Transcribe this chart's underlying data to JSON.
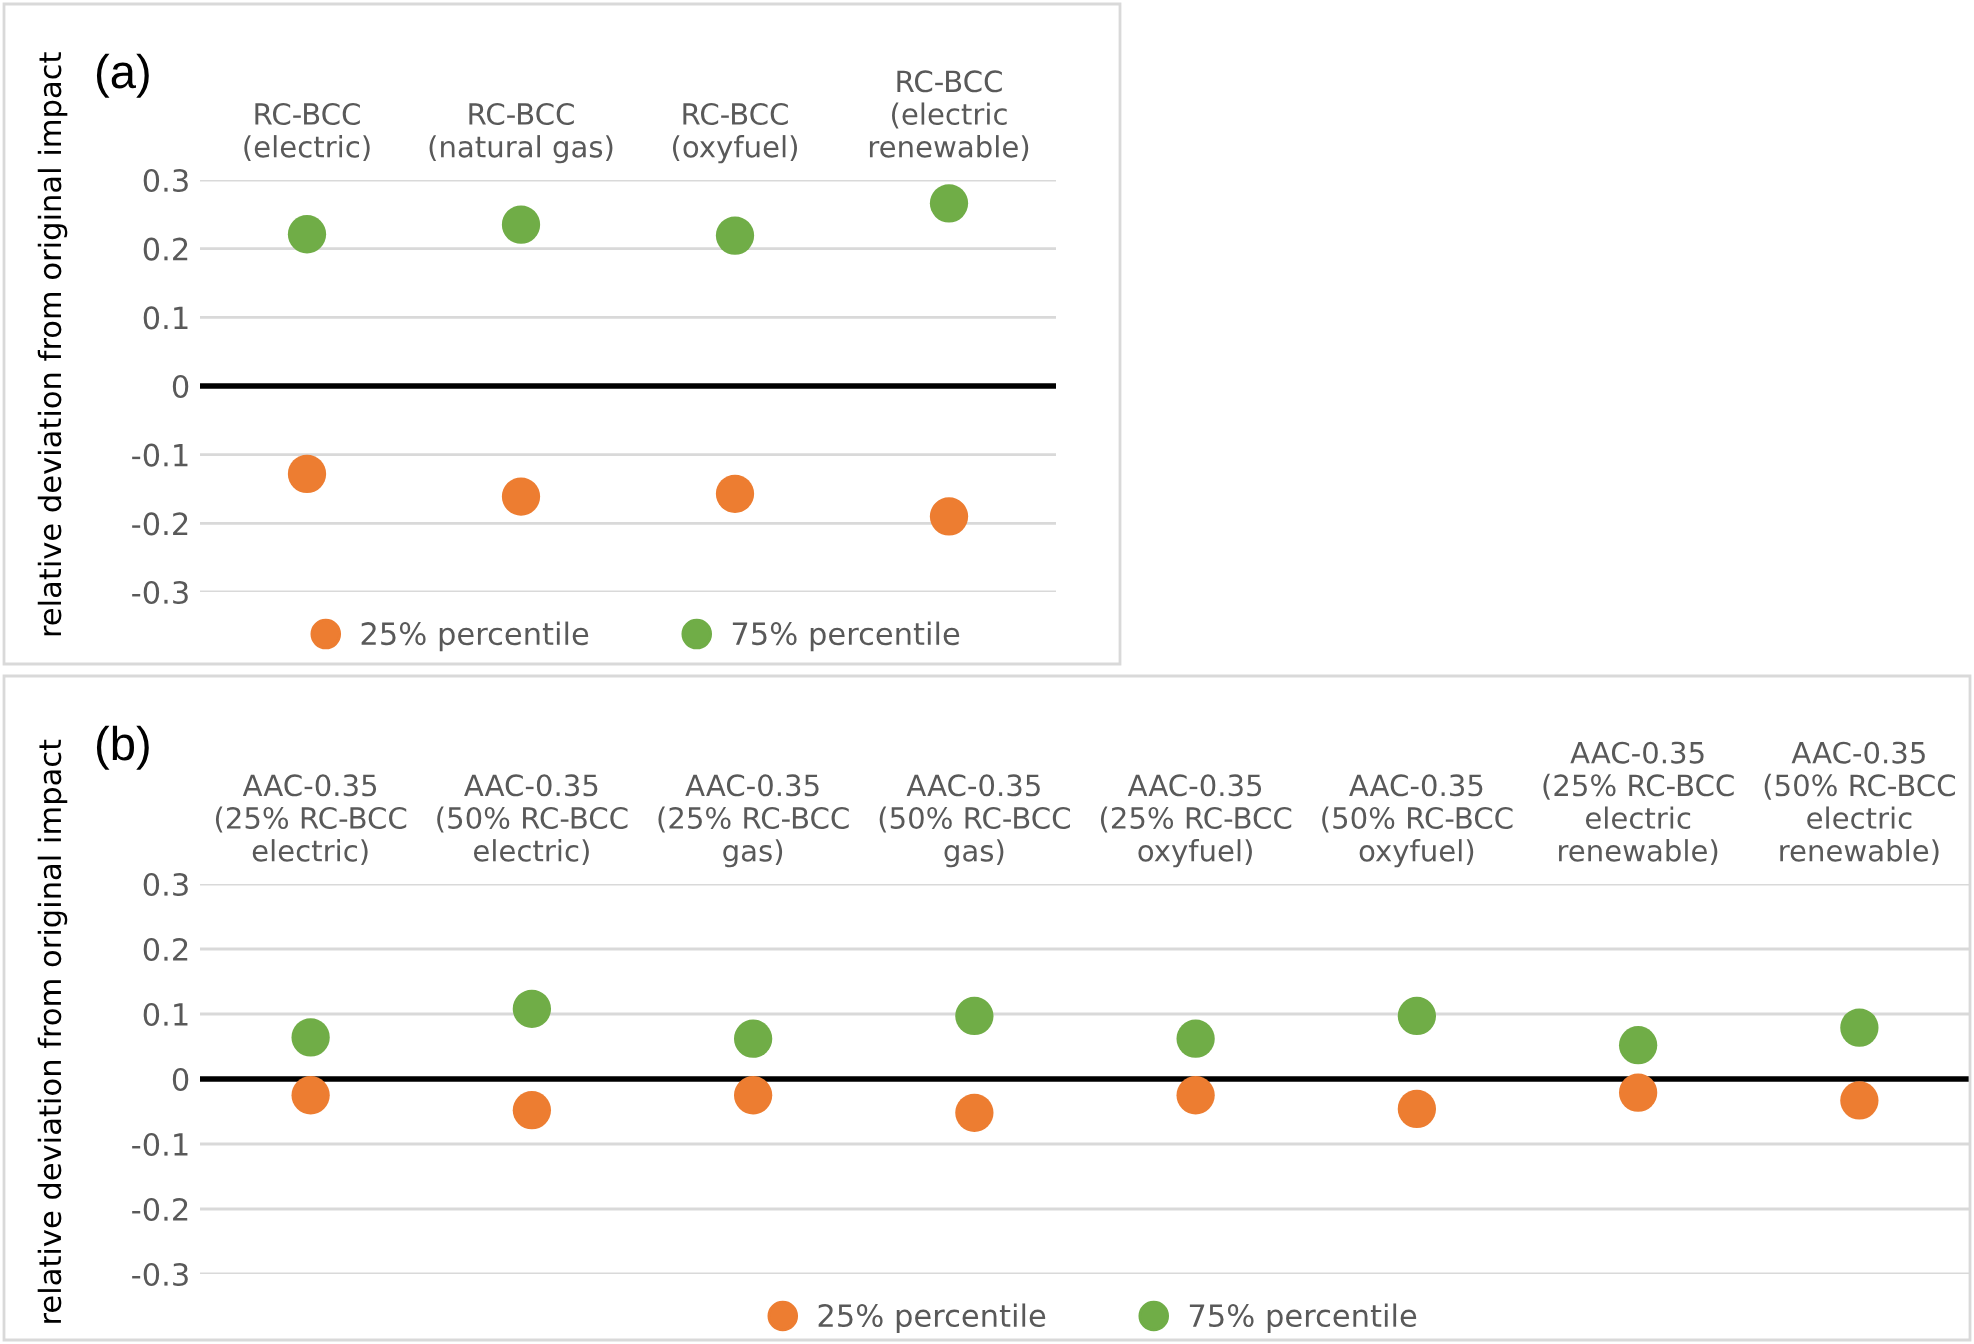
{
  "chart_data": [
    {
      "type": "scatter",
      "annotations": [
        "(a)"
      ],
      "ylabel": "relative deviation from original impact",
      "categories": [
        "RC-BCC\n(electric)",
        "RC-BCC\n(natural gas)",
        "RC-BCC\n(oxyfuel)",
        "RC-BCC\n(electric\nrenewable)"
      ],
      "series": [
        {
          "name": "25% percentile",
          "color": "#ed7d31",
          "values": [
            -0.128,
            -0.161,
            -0.157,
            -0.19
          ]
        },
        {
          "name": "75% percentile",
          "color": "#70ad47",
          "values": [
            0.221,
            0.235,
            0.219,
            0.266
          ]
        }
      ],
      "ylim": [
        -0.3,
        0.3
      ],
      "yticks": [
        -0.3,
        -0.2,
        -0.1,
        0,
        0.1,
        0.2,
        0.3
      ],
      "ref_lines": [
        {
          "axis": "y",
          "value": 0,
          "color": "#000000"
        }
      ],
      "grid": "y",
      "legend": "bottom",
      "marker": "circle"
    },
    {
      "type": "scatter",
      "annotations": [
        "(b)"
      ],
      "ylabel": "relative deviation from original impact",
      "categories": [
        "AAC-0.35\n(25% RC-BCC\nelectric)",
        "AAC-0.35\n(50% RC-BCC\nelectric)",
        "AAC-0.35\n(25% RC-BCC\ngas)",
        "AAC-0.35\n(50% RC-BCC\ngas)",
        "AAC-0.35\n(25% RC-BCC\noxyfuel)",
        "AAC-0.35\n(50% RC-BCC\noxyfuel)",
        "AAC-0.35\n(25% RC-BCC\nelectric\nrenewable)",
        "AAC-0.35\n(50% RC-BCC\nelectric\nrenewable)"
      ],
      "series": [
        {
          "name": "25% percentile",
          "color": "#ed7d31",
          "values": [
            -0.025,
            -0.048,
            -0.025,
            -0.052,
            -0.025,
            -0.046,
            -0.021,
            -0.033
          ]
        },
        {
          "name": "75% percentile",
          "color": "#70ad47",
          "values": [
            0.064,
            0.108,
            0.062,
            0.097,
            0.062,
            0.097,
            0.052,
            0.079
          ]
        }
      ],
      "ylim": [
        -0.3,
        0.3
      ],
      "yticks": [
        -0.3,
        -0.2,
        -0.1,
        0,
        0.1,
        0.2,
        0.3
      ],
      "ref_lines": [
        {
          "axis": "y",
          "value": 0,
          "color": "#000000"
        }
      ],
      "grid": "y",
      "legend": "bottom",
      "marker": "circle"
    }
  ]
}
